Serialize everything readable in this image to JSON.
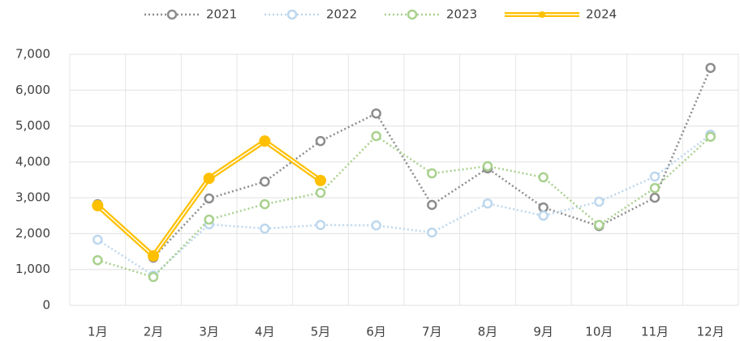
{
  "chart_data": {
    "type": "line",
    "categories": [
      "1月",
      "2月",
      "3月",
      "4月",
      "5月",
      "6月",
      "7月",
      "8月",
      "9月",
      "10月",
      "11月",
      "12月"
    ],
    "series": [
      {
        "name": "2021",
        "color": "#8c8c8c",
        "line_style": "dotted",
        "marker": "open",
        "values": [
          2820,
          1330,
          2980,
          3450,
          4580,
          5350,
          2800,
          3820,
          2730,
          2210,
          3000,
          6620
        ]
      },
      {
        "name": "2022",
        "color": "#bdd7ee",
        "line_style": "dotted",
        "marker": "open",
        "values": [
          1830,
          830,
          2260,
          2140,
          2240,
          2230,
          2030,
          2840,
          2500,
          2890,
          3590,
          4760
        ]
      },
      {
        "name": "2023",
        "color": "#a9d18e",
        "line_style": "dotted",
        "marker": "open",
        "values": [
          1260,
          790,
          2390,
          2820,
          3140,
          4720,
          3680,
          3880,
          3570,
          2240,
          3270,
          4700
        ]
      },
      {
        "name": "2024",
        "color": "#ffc000",
        "line_style": "double",
        "marker": "filled",
        "values": [
          2780,
          1380,
          3540,
          4580,
          3480,
          null,
          null,
          null,
          null,
          null,
          null,
          null
        ]
      }
    ],
    "ylim": [
      0,
      7000
    ],
    "yticks": [
      0,
      {
        "value": 1000,
        "label": "1,000"
      },
      {
        "value": 2000,
        "label": "2,000"
      },
      {
        "value": 3000,
        "label": "3,000"
      },
      {
        "value": 4000,
        "label": "4,000"
      },
      {
        "value": 5000,
        "label": "5,000"
      },
      {
        "value": 6000,
        "label": "6,000"
      },
      {
        "value": 7000,
        "label": "7,000"
      }
    ],
    "grid": true,
    "legend": "top"
  }
}
